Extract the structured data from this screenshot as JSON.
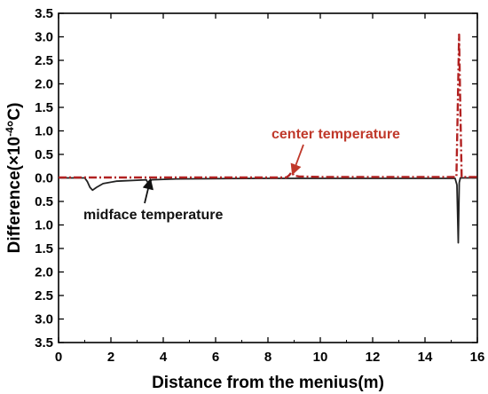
{
  "chart_data": {
    "type": "line",
    "title": "",
    "xlabel": "Distance from the menius(m)",
    "ylabel": "Difference(×10",
    "ylabel_exponent": "-4",
    "ylabel_unit": "°C)",
    "xlim": [
      0,
      16
    ],
    "ylim": [
      -3.5,
      3.5
    ],
    "x_ticks": [
      "0",
      "2",
      "4",
      "6",
      "8",
      "10",
      "12",
      "14",
      "16"
    ],
    "y_ticks": [
      {
        "value": 3.5,
        "label": "3.5"
      },
      {
        "value": 3.0,
        "label": "3.0"
      },
      {
        "value": 2.5,
        "label": "2.5"
      },
      {
        "value": 2.0,
        "label": "2.0"
      },
      {
        "value": 1.5,
        "label": "1.5"
      },
      {
        "value": 1.0,
        "label": "1.0"
      },
      {
        "value": 0.5,
        "label": "0.5"
      },
      {
        "value": 0.0,
        "label": "0.0"
      },
      {
        "value": -0.5,
        "label": "0.5"
      },
      {
        "value": -1.0,
        "label": "1.0"
      },
      {
        "value": -1.5,
        "label": "1.5"
      },
      {
        "value": -2.0,
        "label": "2.0"
      },
      {
        "value": -2.5,
        "label": "2.5"
      },
      {
        "value": -3.0,
        "label": "3.0"
      },
      {
        "value": -3.5,
        "label": "3.5"
      }
    ],
    "grid": false,
    "series": [
      {
        "key": "midface",
        "color": "#222222",
        "dash": "solid",
        "points": [
          [
            0,
            0
          ],
          [
            1.0,
            0
          ],
          [
            1.1,
            -0.08
          ],
          [
            1.2,
            -0.2
          ],
          [
            1.3,
            -0.26
          ],
          [
            1.45,
            -0.2
          ],
          [
            1.7,
            -0.12
          ],
          [
            2.2,
            -0.07
          ],
          [
            3.0,
            -0.05
          ],
          [
            3.35,
            -0.04
          ],
          [
            3.45,
            -0.14
          ],
          [
            3.55,
            -0.04
          ],
          [
            4.5,
            -0.02
          ],
          [
            8.0,
            -0.01
          ],
          [
            10.0,
            -0.01
          ],
          [
            15.15,
            -0.01
          ],
          [
            15.22,
            -0.15
          ],
          [
            15.27,
            -1.38
          ],
          [
            15.31,
            -0.1
          ],
          [
            15.35,
            0
          ],
          [
            16,
            0
          ]
        ]
      },
      {
        "key": "center",
        "color": "#b22222",
        "dash": "dashdot",
        "points": [
          [
            0,
            0.01
          ],
          [
            1.0,
            0.01
          ],
          [
            3.0,
            0.01
          ],
          [
            8.7,
            0.01
          ],
          [
            8.8,
            0.05
          ],
          [
            8.9,
            0.12
          ],
          [
            9.0,
            0.05
          ],
          [
            9.2,
            0.03
          ],
          [
            10.0,
            0.02
          ],
          [
            13.0,
            0.02
          ],
          [
            15.2,
            0.02
          ],
          [
            15.25,
            1.5
          ],
          [
            15.3,
            3.05
          ],
          [
            15.35,
            1.5
          ],
          [
            15.4,
            0.02
          ],
          [
            16,
            0.02
          ]
        ]
      }
    ],
    "annotations": [
      {
        "key": "center",
        "text": "center temperature",
        "color": "#c0392b",
        "target": [
          8.95,
          0.1
        ]
      },
      {
        "key": "midface",
        "text": "midface temperature",
        "color": "#111111",
        "target": [
          3.5,
          -0.05
        ]
      }
    ]
  }
}
